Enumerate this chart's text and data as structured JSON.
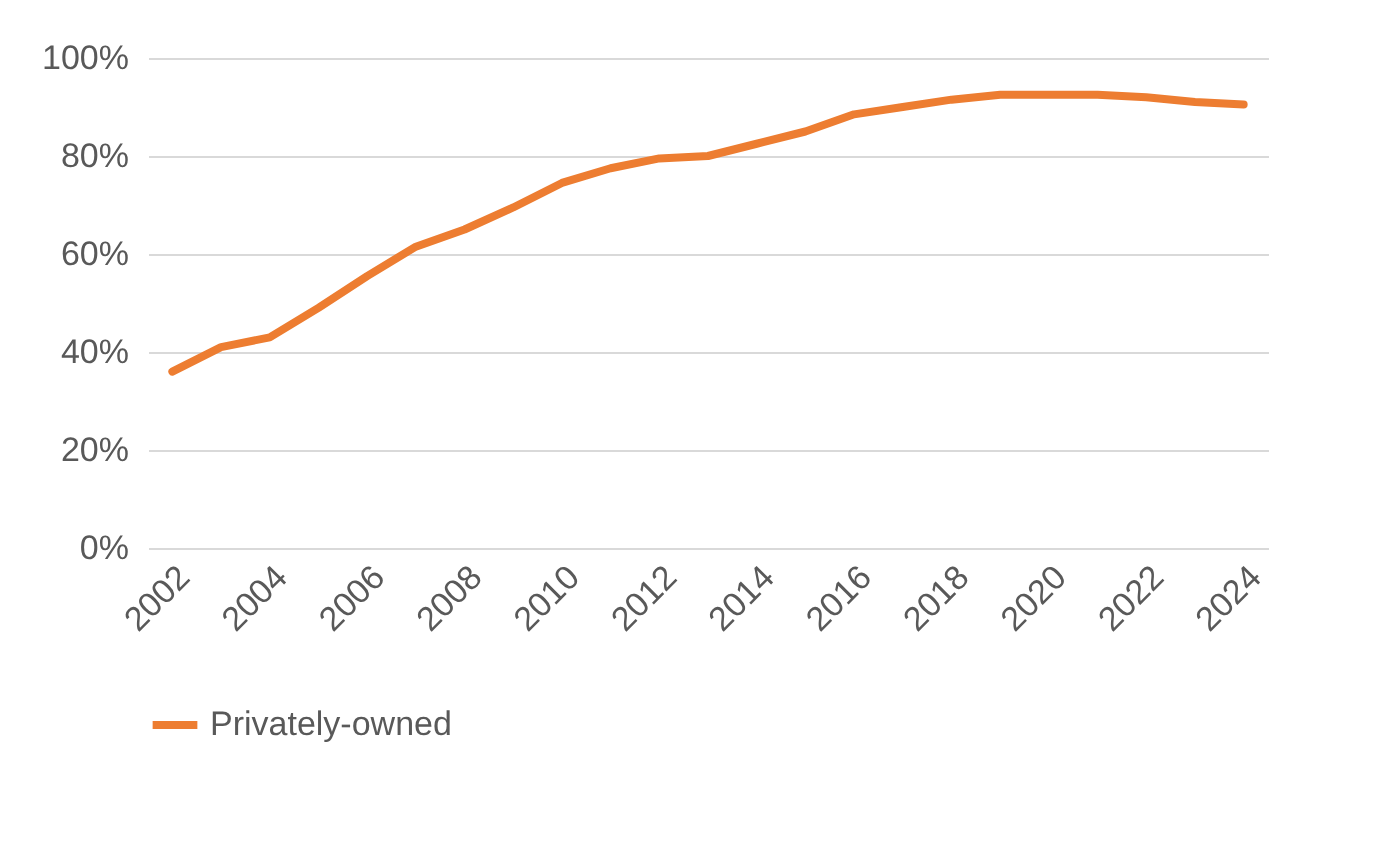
{
  "chart_data": {
    "type": "line",
    "x": [
      2002,
      2003,
      2004,
      2005,
      2006,
      2007,
      2008,
      2009,
      2010,
      2011,
      2012,
      2013,
      2014,
      2015,
      2016,
      2017,
      2018,
      2019,
      2020,
      2021,
      2022,
      2023,
      2024
    ],
    "series": [
      {
        "name": "Privately-owned",
        "color": "#ed7d31",
        "values": [
          36,
          41,
          43,
          49,
          55.5,
          61.5,
          65,
          69.5,
          74.5,
          77.5,
          79.5,
          80,
          82.5,
          85,
          88.5,
          90,
          91.5,
          92.5,
          92.5,
          92.5,
          92,
          91,
          90.5
        ]
      }
    ],
    "xlim": [
      2001.5,
      2024.5
    ],
    "xticks": [
      2002,
      2004,
      2006,
      2008,
      2010,
      2012,
      2014,
      2016,
      2018,
      2020,
      2022,
      2024
    ],
    "ylim": [
      0,
      100
    ],
    "yticks": [
      {
        "value": 0,
        "label": "0%"
      },
      {
        "value": 20,
        "label": "20%"
      },
      {
        "value": 40,
        "label": "40%"
      },
      {
        "value": 60,
        "label": "60%"
      },
      {
        "value": 80,
        "label": "80%"
      },
      {
        "value": 100,
        "label": "100%"
      }
    ],
    "grid": "y",
    "legend": "bottom",
    "marker": "none",
    "line_style": "solid"
  }
}
